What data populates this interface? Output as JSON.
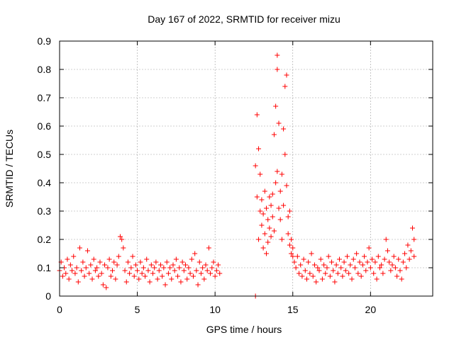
{
  "chart_data": {
    "type": "scatter",
    "title": "Day 167 of 2022, SRMTID for receiver mizu",
    "xlabel": "GPS time / hours",
    "ylabel": "SRMTID / TECUs",
    "xlim": [
      0,
      24
    ],
    "ylim": [
      0,
      0.9
    ],
    "xticks": [
      0,
      5,
      10,
      15,
      20
    ],
    "yticks": [
      0,
      0.1,
      0.2,
      0.3,
      0.4,
      0.5,
      0.6,
      0.7,
      0.8,
      0.9
    ],
    "grid": true,
    "marker": "+",
    "color": "#ff0000",
    "series": [
      {
        "name": "SRMTID",
        "points": [
          [
            0.0,
            0.09
          ],
          [
            0.1,
            0.12
          ],
          [
            0.2,
            0.07
          ],
          [
            0.3,
            0.1
          ],
          [
            0.4,
            0.08
          ],
          [
            0.5,
            0.13
          ],
          [
            0.6,
            0.06
          ],
          [
            0.7,
            0.11
          ],
          [
            0.8,
            0.09
          ],
          [
            0.9,
            0.14
          ],
          [
            1.0,
            0.08
          ],
          [
            1.1,
            0.1
          ],
          [
            1.2,
            0.05
          ],
          [
            1.3,
            0.17
          ],
          [
            1.4,
            0.09
          ],
          [
            1.5,
            0.12
          ],
          [
            1.6,
            0.07
          ],
          [
            1.7,
            0.1
          ],
          [
            1.8,
            0.16
          ],
          [
            1.9,
            0.08
          ],
          [
            2.0,
            0.11
          ],
          [
            2.1,
            0.06
          ],
          [
            2.2,
            0.13
          ],
          [
            2.3,
            0.09
          ],
          [
            2.4,
            0.1
          ],
          [
            2.5,
            0.07
          ],
          [
            2.6,
            0.12
          ],
          [
            2.7,
            0.08
          ],
          [
            2.8,
            0.04
          ],
          [
            2.9,
            0.11
          ],
          [
            3.0,
            0.03
          ],
          [
            3.1,
            0.1
          ],
          [
            3.2,
            0.13
          ],
          [
            3.3,
            0.07
          ],
          [
            3.4,
            0.09
          ],
          [
            3.5,
            0.12
          ],
          [
            3.6,
            0.06
          ],
          [
            3.7,
            0.11
          ],
          [
            3.8,
            0.14
          ],
          [
            3.9,
            0.21
          ],
          [
            4.0,
            0.2
          ],
          [
            4.1,
            0.17
          ],
          [
            4.2,
            0.09
          ],
          [
            4.3,
            0.05
          ],
          [
            4.4,
            0.12
          ],
          [
            4.5,
            0.08
          ],
          [
            4.6,
            0.1
          ],
          [
            4.7,
            0.14
          ],
          [
            4.8,
            0.07
          ],
          [
            4.9,
            0.11
          ],
          [
            5.0,
            0.09
          ],
          [
            5.1,
            0.06
          ],
          [
            5.2,
            0.12
          ],
          [
            5.3,
            0.08
          ],
          [
            5.4,
            0.1
          ],
          [
            5.5,
            0.07
          ],
          [
            5.6,
            0.13
          ],
          [
            5.7,
            0.09
          ],
          [
            5.8,
            0.05
          ],
          [
            5.9,
            0.11
          ],
          [
            6.0,
            0.08
          ],
          [
            6.1,
            0.1
          ],
          [
            6.2,
            0.12
          ],
          [
            6.3,
            0.06
          ],
          [
            6.4,
            0.09
          ],
          [
            6.5,
            0.11
          ],
          [
            6.6,
            0.07
          ],
          [
            6.7,
            0.1
          ],
          [
            6.8,
            0.04
          ],
          [
            6.9,
            0.12
          ],
          [
            7.0,
            0.08
          ],
          [
            7.1,
            0.1
          ],
          [
            7.2,
            0.06
          ],
          [
            7.3,
            0.11
          ],
          [
            7.4,
            0.09
          ],
          [
            7.5,
            0.13
          ],
          [
            7.6,
            0.07
          ],
          [
            7.7,
            0.1
          ],
          [
            7.8,
            0.05
          ],
          [
            7.9,
            0.12
          ],
          [
            8.0,
            0.09
          ],
          [
            8.1,
            0.11
          ],
          [
            8.2,
            0.06
          ],
          [
            8.3,
            0.1
          ],
          [
            8.4,
            0.08
          ],
          [
            8.5,
            0.13
          ],
          [
            8.6,
            0.07
          ],
          [
            8.7,
            0.15
          ],
          [
            8.8,
            0.09
          ],
          [
            8.9,
            0.04
          ],
          [
            9.0,
            0.12
          ],
          [
            9.1,
            0.08
          ],
          [
            9.2,
            0.1
          ],
          [
            9.3,
            0.06
          ],
          [
            9.4,
            0.11
          ],
          [
            9.5,
            0.09
          ],
          [
            9.6,
            0.17
          ],
          [
            9.7,
            0.08
          ],
          [
            9.8,
            0.1
          ],
          [
            9.9,
            0.12
          ],
          [
            10.0,
            0.07
          ],
          [
            10.1,
            0.09
          ],
          [
            10.2,
            0.11
          ],
          [
            10.3,
            0.08
          ],
          [
            12.6,
            0.0
          ],
          [
            12.6,
            0.46
          ],
          [
            12.7,
            0.35
          ],
          [
            12.7,
            0.64
          ],
          [
            12.8,
            0.2
          ],
          [
            12.8,
            0.52
          ],
          [
            12.9,
            0.3
          ],
          [
            12.9,
            0.43
          ],
          [
            13.0,
            0.25
          ],
          [
            13.0,
            0.34
          ],
          [
            13.1,
            0.17
          ],
          [
            13.1,
            0.29
          ],
          [
            13.2,
            0.37
          ],
          [
            13.2,
            0.22
          ],
          [
            13.3,
            0.15
          ],
          [
            13.3,
            0.31
          ],
          [
            13.4,
            0.27
          ],
          [
            13.4,
            0.19
          ],
          [
            13.5,
            0.35
          ],
          [
            13.5,
            0.24
          ],
          [
            13.6,
            0.32
          ],
          [
            13.6,
            0.21
          ],
          [
            13.7,
            0.36
          ],
          [
            13.7,
            0.28
          ],
          [
            13.8,
            0.57
          ],
          [
            13.8,
            0.23
          ],
          [
            13.9,
            0.67
          ],
          [
            13.9,
            0.4
          ],
          [
            14.0,
            0.8
          ],
          [
            14.0,
            0.85
          ],
          [
            14.0,
            0.44
          ],
          [
            14.1,
            0.31
          ],
          [
            14.1,
            0.61
          ],
          [
            14.2,
            0.27
          ],
          [
            14.2,
            0.37
          ],
          [
            14.3,
            0.43
          ],
          [
            14.3,
            0.2
          ],
          [
            14.4,
            0.59
          ],
          [
            14.4,
            0.32
          ],
          [
            14.5,
            0.74
          ],
          [
            14.5,
            0.5
          ],
          [
            14.6,
            0.78
          ],
          [
            14.6,
            0.39
          ],
          [
            14.7,
            0.28
          ],
          [
            14.7,
            0.22
          ],
          [
            14.8,
            0.18
          ],
          [
            14.8,
            0.3
          ],
          [
            14.9,
            0.15
          ],
          [
            14.9,
            0.2
          ],
          [
            15.0,
            0.14
          ],
          [
            15.0,
            0.17
          ],
          [
            15.1,
            0.12
          ],
          [
            15.2,
            0.1
          ],
          [
            15.3,
            0.14
          ],
          [
            15.4,
            0.08
          ],
          [
            15.5,
            0.11
          ],
          [
            15.6,
            0.07
          ],
          [
            15.7,
            0.13
          ],
          [
            15.8,
            0.09
          ],
          [
            15.9,
            0.06
          ],
          [
            16.0,
            0.12
          ],
          [
            16.1,
            0.08
          ],
          [
            16.2,
            0.15
          ],
          [
            16.3,
            0.07
          ],
          [
            16.4,
            0.11
          ],
          [
            16.5,
            0.05
          ],
          [
            16.6,
            0.1
          ],
          [
            16.7,
            0.09
          ],
          [
            16.8,
            0.13
          ],
          [
            16.9,
            0.06
          ],
          [
            17.0,
            0.11
          ],
          [
            17.1,
            0.08
          ],
          [
            17.2,
            0.1
          ],
          [
            17.3,
            0.14
          ],
          [
            17.4,
            0.07
          ],
          [
            17.5,
            0.12
          ],
          [
            17.6,
            0.09
          ],
          [
            17.7,
            0.05
          ],
          [
            17.8,
            0.11
          ],
          [
            17.9,
            0.08
          ],
          [
            18.0,
            0.13
          ],
          [
            18.1,
            0.1
          ],
          [
            18.2,
            0.07
          ],
          [
            18.3,
            0.12
          ],
          [
            18.4,
            0.09
          ],
          [
            18.5,
            0.14
          ],
          [
            18.6,
            0.08
          ],
          [
            18.7,
            0.11
          ],
          [
            18.8,
            0.06
          ],
          [
            18.9,
            0.13
          ],
          [
            19.0,
            0.1
          ],
          [
            19.1,
            0.15
          ],
          [
            19.2,
            0.08
          ],
          [
            19.3,
            0.12
          ],
          [
            19.4,
            0.07
          ],
          [
            19.5,
            0.11
          ],
          [
            19.6,
            0.14
          ],
          [
            19.7,
            0.09
          ],
          [
            19.8,
            0.12
          ],
          [
            19.9,
            0.17
          ],
          [
            20.0,
            0.1
          ],
          [
            20.1,
            0.13
          ],
          [
            20.2,
            0.08
          ],
          [
            20.3,
            0.12
          ],
          [
            20.4,
            0.06
          ],
          [
            20.5,
            0.14
          ],
          [
            20.6,
            0.1
          ],
          [
            20.7,
            0.11
          ],
          [
            20.8,
            0.08
          ],
          [
            20.9,
            0.13
          ],
          [
            21.0,
            0.2
          ],
          [
            21.1,
            0.16
          ],
          [
            21.2,
            0.12
          ],
          [
            21.3,
            0.09
          ],
          [
            21.4,
            0.11
          ],
          [
            21.5,
            0.14
          ],
          [
            21.6,
            0.1
          ],
          [
            21.7,
            0.07
          ],
          [
            21.8,
            0.13
          ],
          [
            21.9,
            0.09
          ],
          [
            22.0,
            0.06
          ],
          [
            22.1,
            0.12
          ],
          [
            22.2,
            0.15
          ],
          [
            22.3,
            0.1
          ],
          [
            22.4,
            0.18
          ],
          [
            22.5,
            0.13
          ],
          [
            22.6,
            0.16
          ],
          [
            22.7,
            0.24
          ],
          [
            22.8,
            0.2
          ],
          [
            22.8,
            0.14
          ]
        ]
      }
    ]
  }
}
